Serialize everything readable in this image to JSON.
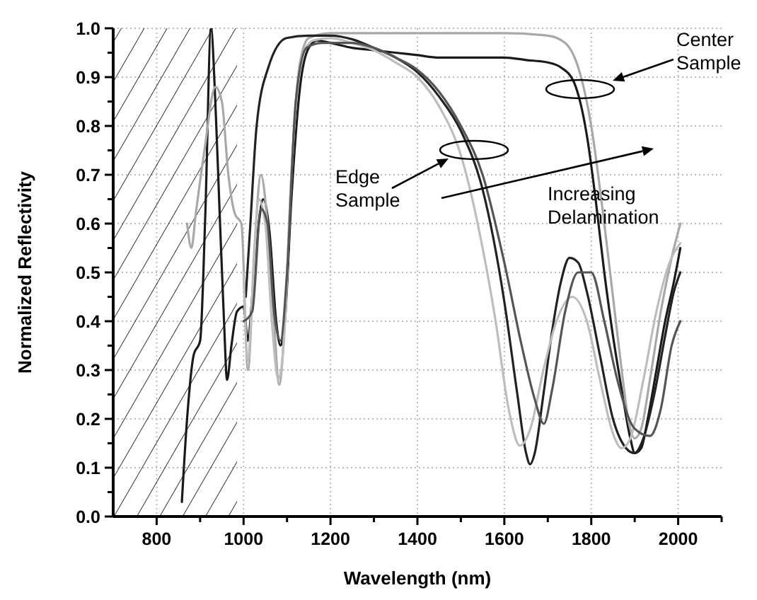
{
  "chart_data": {
    "type": "line",
    "xlabel": "Wavelength (nm)",
    "ylabel": "Normalized Reflectivity",
    "xlim": [
      700,
      2100
    ],
    "ylim": [
      0,
      1
    ],
    "xticks": [
      800,
      {
        "value": 900,
        "label": null
      },
      1000,
      {
        "value": 1100,
        "label": null
      },
      1200,
      {
        "value": 1300,
        "label": null
      },
      1400,
      {
        "value": 1500,
        "label": null
      },
      1600,
      {
        "value": 1700,
        "label": null
      },
      1800,
      {
        "value": 1900,
        "label": null
      },
      2000,
      {
        "value": 2100,
        "label": null
      }
    ],
    "yticks": [
      {
        "value": 0,
        "label": "0.0"
      },
      {
        "value": 0.05,
        "label": null
      },
      0.1,
      {
        "value": 0.15,
        "label": null
      },
      0.2,
      {
        "value": 0.25,
        "label": null
      },
      0.3,
      {
        "value": 0.35,
        "label": null
      },
      0.4,
      {
        "value": 0.45,
        "label": null
      },
      0.5,
      {
        "value": 0.55,
        "label": null
      },
      0.6,
      {
        "value": 0.65,
        "label": null
      },
      0.7,
      {
        "value": 0.75,
        "label": null
      },
      0.8,
      {
        "value": 0.85,
        "label": null
      },
      0.9,
      {
        "value": 0.95,
        "label": null
      },
      {
        "value": 1,
        "label": "1.0"
      }
    ],
    "grid": true,
    "line_style": "solid",
    "bands": [
      {
        "axis": "x",
        "from": 700,
        "to": 985,
        "color": "#000000"
      }
    ],
    "series": [
      {
        "color": "#1a1a1a",
        "x": [
          858,
          870,
          885,
          900,
          912,
          925,
          935,
          945,
          955,
          962,
          972,
          985,
          1000,
          1010,
          1020,
          1035,
          1045,
          1060,
          1075,
          1085,
          1095,
          1110,
          1130,
          1150,
          1170,
          1200,
          1250,
          1300,
          1350,
          1400,
          1450,
          1500,
          1550,
          1600,
          1650,
          1700,
          1730,
          1760,
          1790,
          1810,
          1830,
          1850,
          1870,
          1890,
          1900,
          1915,
          1930,
          1950,
          1970,
          1990,
          2005
        ],
        "values": [
          0.03,
          0.2,
          0.33,
          0.36,
          0.62,
          1.0,
          0.85,
          0.62,
          0.4,
          0.28,
          0.35,
          0.42,
          0.43,
          0.36,
          0.45,
          0.6,
          0.65,
          0.58,
          0.4,
          0.35,
          0.4,
          0.65,
          0.88,
          0.96,
          0.975,
          0.97,
          0.96,
          0.955,
          0.95,
          0.945,
          0.94,
          0.94,
          0.94,
          0.94,
          0.935,
          0.93,
          0.92,
          0.89,
          0.78,
          0.65,
          0.5,
          0.37,
          0.26,
          0.16,
          0.13,
          0.14,
          0.2,
          0.3,
          0.4,
          0.48,
          0.55
        ]
      },
      {
        "color": "#a8a8a8",
        "x": [
          870,
          880,
          890,
          910,
          935,
          950,
          965,
          980,
          995,
          1010,
          1025,
          1040,
          1055,
          1070,
          1082,
          1095,
          1110,
          1130,
          1150,
          1200,
          1300,
          1400,
          1500,
          1600,
          1700,
          1740,
          1770,
          1800,
          1830,
          1850,
          1870,
          1885,
          1900,
          1915,
          1935,
          1960,
          1985,
          2005
        ],
        "values": [
          0.6,
          0.55,
          0.62,
          0.75,
          0.88,
          0.85,
          0.7,
          0.62,
          0.6,
          0.3,
          0.55,
          0.7,
          0.6,
          0.4,
          0.27,
          0.4,
          0.7,
          0.93,
          0.98,
          0.99,
          0.99,
          0.99,
          0.99,
          0.99,
          0.985,
          0.97,
          0.92,
          0.8,
          0.6,
          0.45,
          0.3,
          0.2,
          0.16,
          0.18,
          0.28,
          0.42,
          0.53,
          0.6
        ]
      },
      {
        "color": "#222222",
        "x": [
          1005,
          1015,
          1030,
          1057,
          1099,
          1150,
          1200,
          1252,
          1300,
          1350,
          1400,
          1450,
          1500,
          1550,
          1600,
          1630,
          1650,
          1659,
          1670,
          1690,
          1710,
          1730,
          1750,
          1770,
          1790,
          1820,
          1850,
          1880,
          1899,
          1920,
          1945,
          1970,
          1990,
          2005
        ],
        "values": [
          0.45,
          0.59,
          0.8,
          0.92,
          0.98,
          0.985,
          0.985,
          0.977,
          0.96,
          0.94,
          0.91,
          0.86,
          0.79,
          0.67,
          0.44,
          0.25,
          0.13,
          0.107,
          0.13,
          0.25,
          0.38,
          0.48,
          0.53,
          0.52,
          0.46,
          0.33,
          0.2,
          0.14,
          0.13,
          0.16,
          0.25,
          0.37,
          0.46,
          0.5
        ]
      },
      {
        "color": "#bdbdbd",
        "x": [
          1000,
          1010,
          1020,
          1035,
          1050,
          1065,
          1080,
          1092,
          1110,
          1130,
          1160,
          1200,
          1250,
          1300,
          1350,
          1400,
          1450,
          1500,
          1550,
          1580,
          1610,
          1636,
          1660,
          1690,
          1720,
          1756,
          1790,
          1820,
          1850,
          1870,
          1890,
          1920,
          1950,
          1980,
          2005
        ],
        "values": [
          0.5,
          0.32,
          0.45,
          0.65,
          0.6,
          0.4,
          0.28,
          0.35,
          0.7,
          0.93,
          0.975,
          0.98,
          0.97,
          0.955,
          0.93,
          0.9,
          0.84,
          0.74,
          0.55,
          0.4,
          0.22,
          0.145,
          0.18,
          0.3,
          0.4,
          0.45,
          0.4,
          0.28,
          0.17,
          0.14,
          0.16,
          0.28,
          0.42,
          0.52,
          0.56
        ]
      },
      {
        "color": "#555555",
        "x": [
          1000,
          1020,
          1040,
          1055,
          1070,
          1085,
          1100,
          1120,
          1145,
          1180,
          1250,
          1300,
          1350,
          1400,
          1450,
          1500,
          1550,
          1600,
          1640,
          1670,
          1691,
          1710,
          1740,
          1770,
          1800,
          1830,
          1860,
          1900,
          1935,
          1960,
          1985,
          2005
        ],
        "values": [
          0.4,
          0.42,
          0.63,
          0.6,
          0.42,
          0.36,
          0.5,
          0.85,
          0.96,
          0.97,
          0.97,
          0.96,
          0.94,
          0.915,
          0.87,
          0.8,
          0.7,
          0.52,
          0.35,
          0.24,
          0.19,
          0.26,
          0.42,
          0.5,
          0.5,
          0.4,
          0.28,
          0.18,
          0.165,
          0.22,
          0.35,
          0.4
        ]
      }
    ],
    "annotations": [
      "Center\nSample",
      "Edge\nSample",
      "Increasing\nDelamination"
    ]
  }
}
